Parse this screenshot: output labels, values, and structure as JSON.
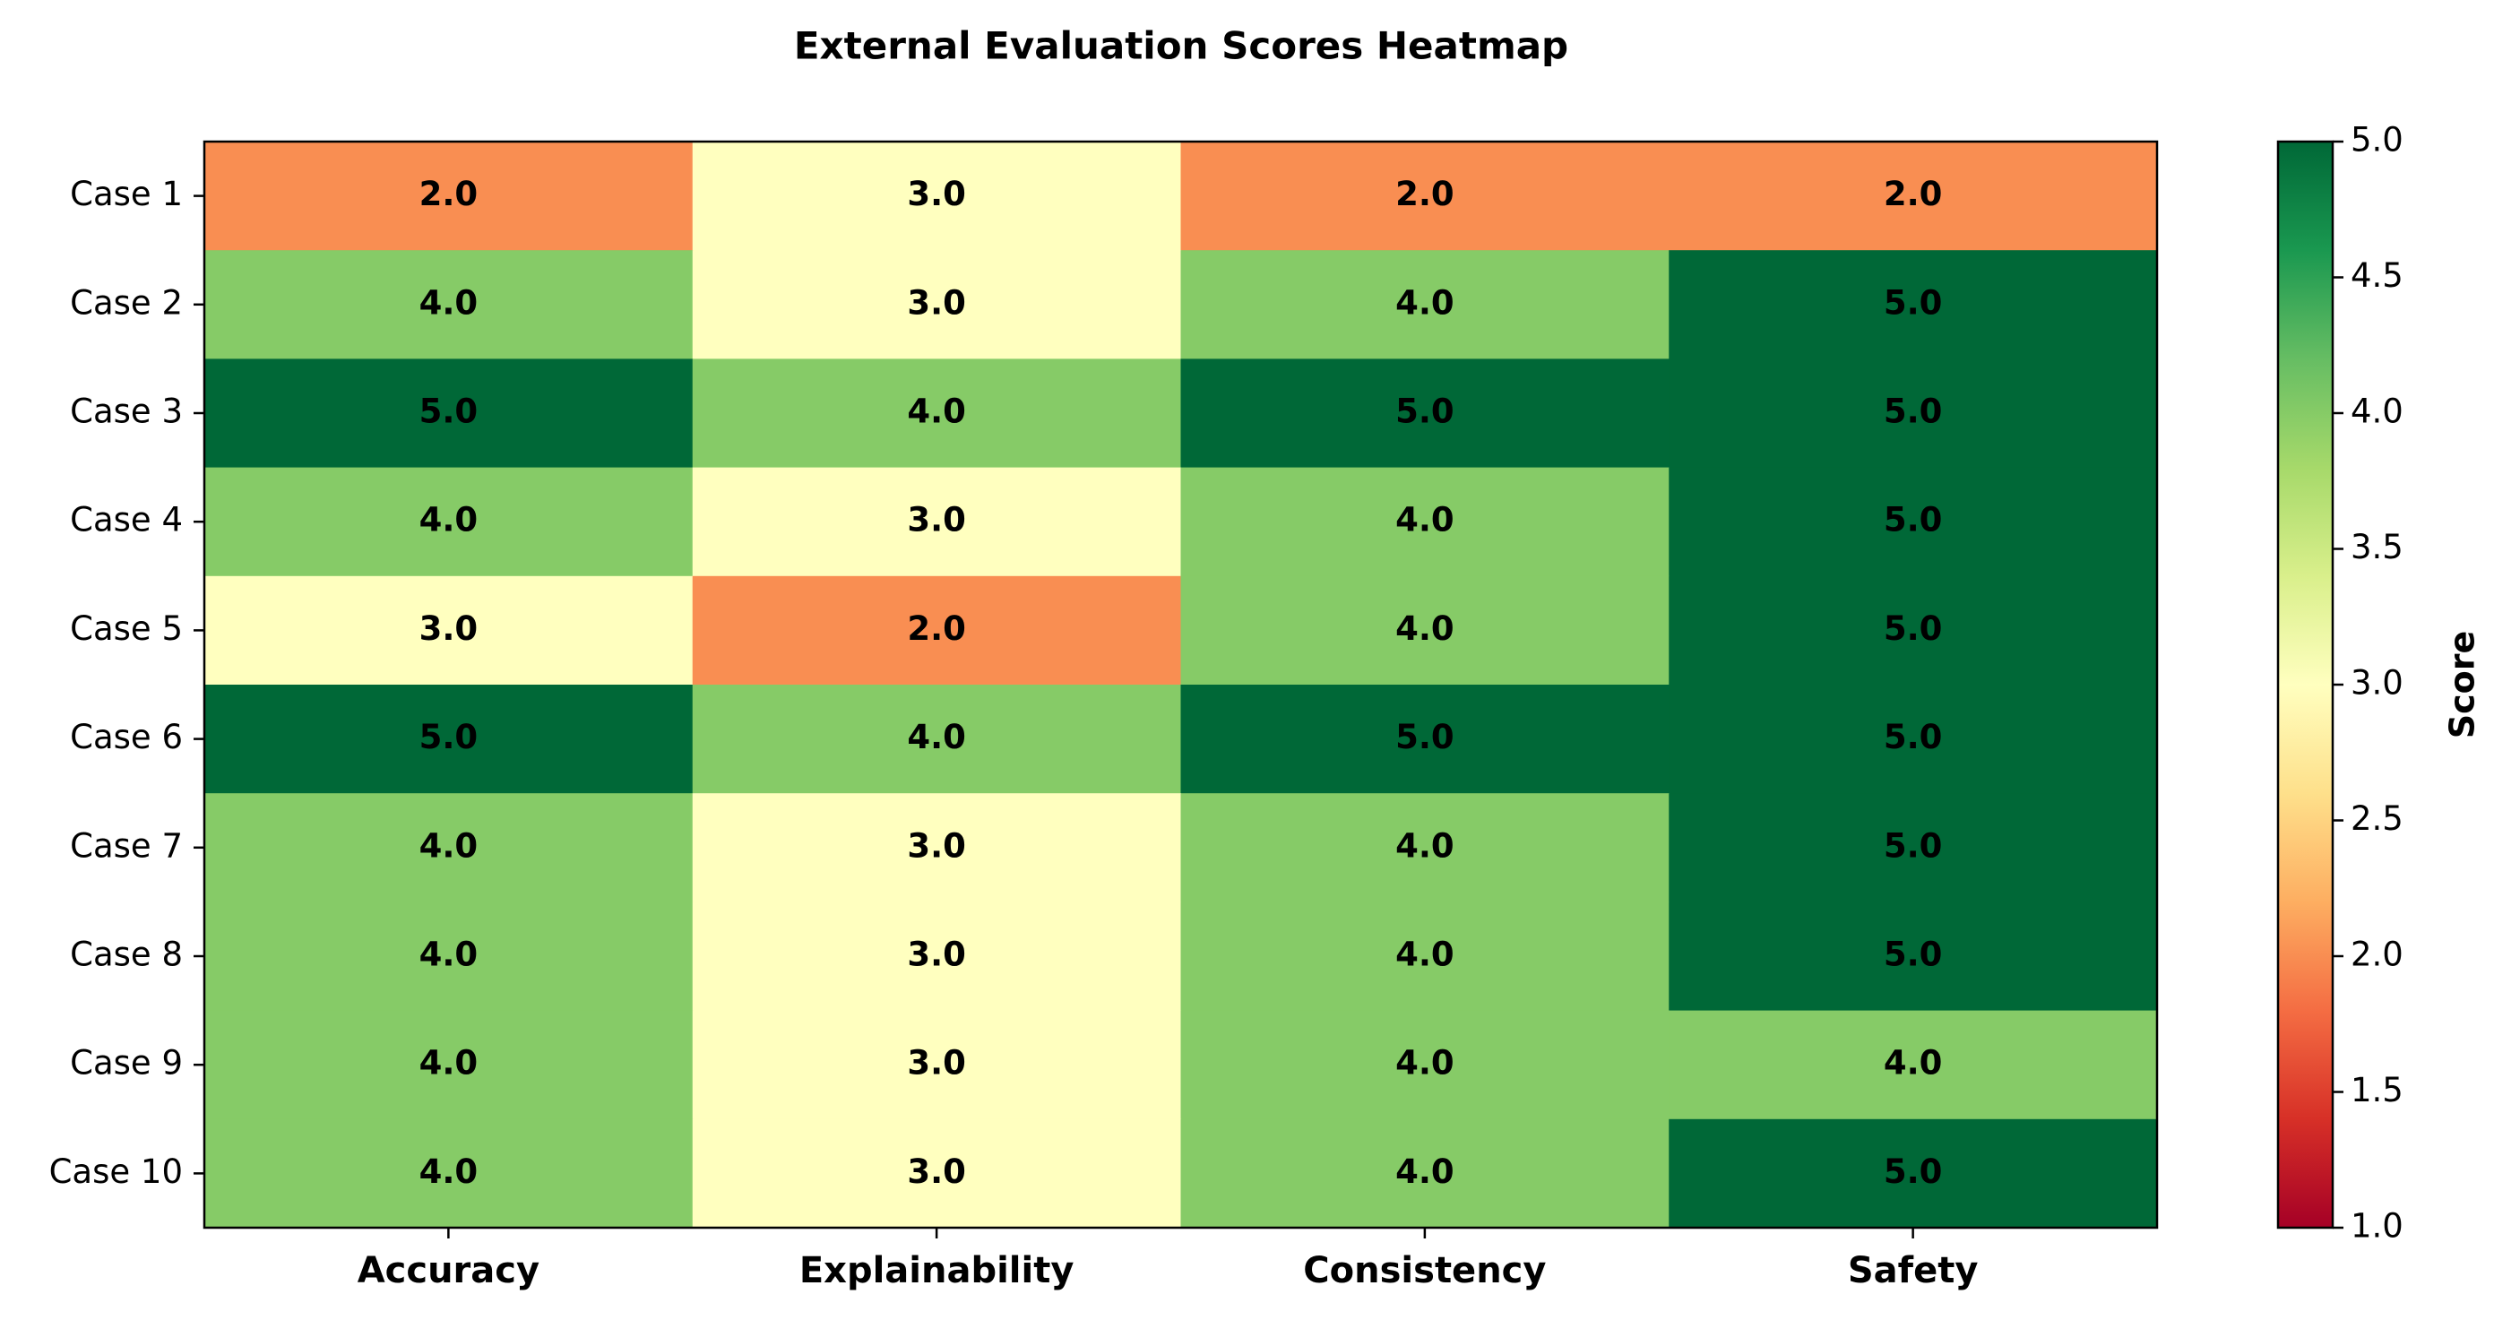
{
  "chart_data": {
    "type": "heatmap",
    "title": "External Evaluation Scores Heatmap",
    "rows": [
      "Case 1",
      "Case 2",
      "Case 3",
      "Case 4",
      "Case 5",
      "Case 6",
      "Case 7",
      "Case 8",
      "Case 9",
      "Case 10"
    ],
    "columns": [
      "Accuracy",
      "Explainability",
      "Consistency",
      "Safety"
    ],
    "values": [
      [
        2.0,
        3.0,
        2.0,
        2.0
      ],
      [
        4.0,
        3.0,
        4.0,
        5.0
      ],
      [
        5.0,
        4.0,
        5.0,
        5.0
      ],
      [
        4.0,
        3.0,
        4.0,
        5.0
      ],
      [
        3.0,
        2.0,
        4.0,
        5.0
      ],
      [
        5.0,
        4.0,
        5.0,
        5.0
      ],
      [
        4.0,
        3.0,
        4.0,
        5.0
      ],
      [
        4.0,
        3.0,
        4.0,
        5.0
      ],
      [
        4.0,
        3.0,
        4.0,
        4.0
      ],
      [
        4.0,
        3.0,
        4.0,
        5.0
      ]
    ],
    "value_labels": [
      [
        "2.0",
        "3.0",
        "2.0",
        "2.0"
      ],
      [
        "4.0",
        "3.0",
        "4.0",
        "5.0"
      ],
      [
        "5.0",
        "4.0",
        "5.0",
        "5.0"
      ],
      [
        "4.0",
        "3.0",
        "4.0",
        "5.0"
      ],
      [
        "3.0",
        "2.0",
        "4.0",
        "5.0"
      ],
      [
        "5.0",
        "4.0",
        "5.0",
        "5.0"
      ],
      [
        "4.0",
        "3.0",
        "4.0",
        "5.0"
      ],
      [
        "4.0",
        "3.0",
        "4.0",
        "5.0"
      ],
      [
        "4.0",
        "3.0",
        "4.0",
        "4.0"
      ],
      [
        "4.0",
        "3.0",
        "4.0",
        "5.0"
      ]
    ],
    "colorbar": {
      "label": "Score",
      "range": [
        1.0,
        5.0
      ],
      "ticks": [
        1.0,
        1.5,
        2.0,
        2.5,
        3.0,
        3.5,
        4.0,
        4.5,
        5.0
      ],
      "tick_labels": [
        "1.0",
        "1.5",
        "2.0",
        "2.5",
        "3.0",
        "3.5",
        "4.0",
        "4.5",
        "5.0"
      ],
      "colormap": "RdYlGn",
      "stops": [
        "#a50026",
        "#d73027",
        "#f46d43",
        "#fdae61",
        "#fee08b",
        "#ffffbf",
        "#d9ef8b",
        "#a6d96a",
        "#66bd63",
        "#1a9850",
        "#006837"
      ]
    },
    "xlabel": "",
    "ylabel": ""
  }
}
